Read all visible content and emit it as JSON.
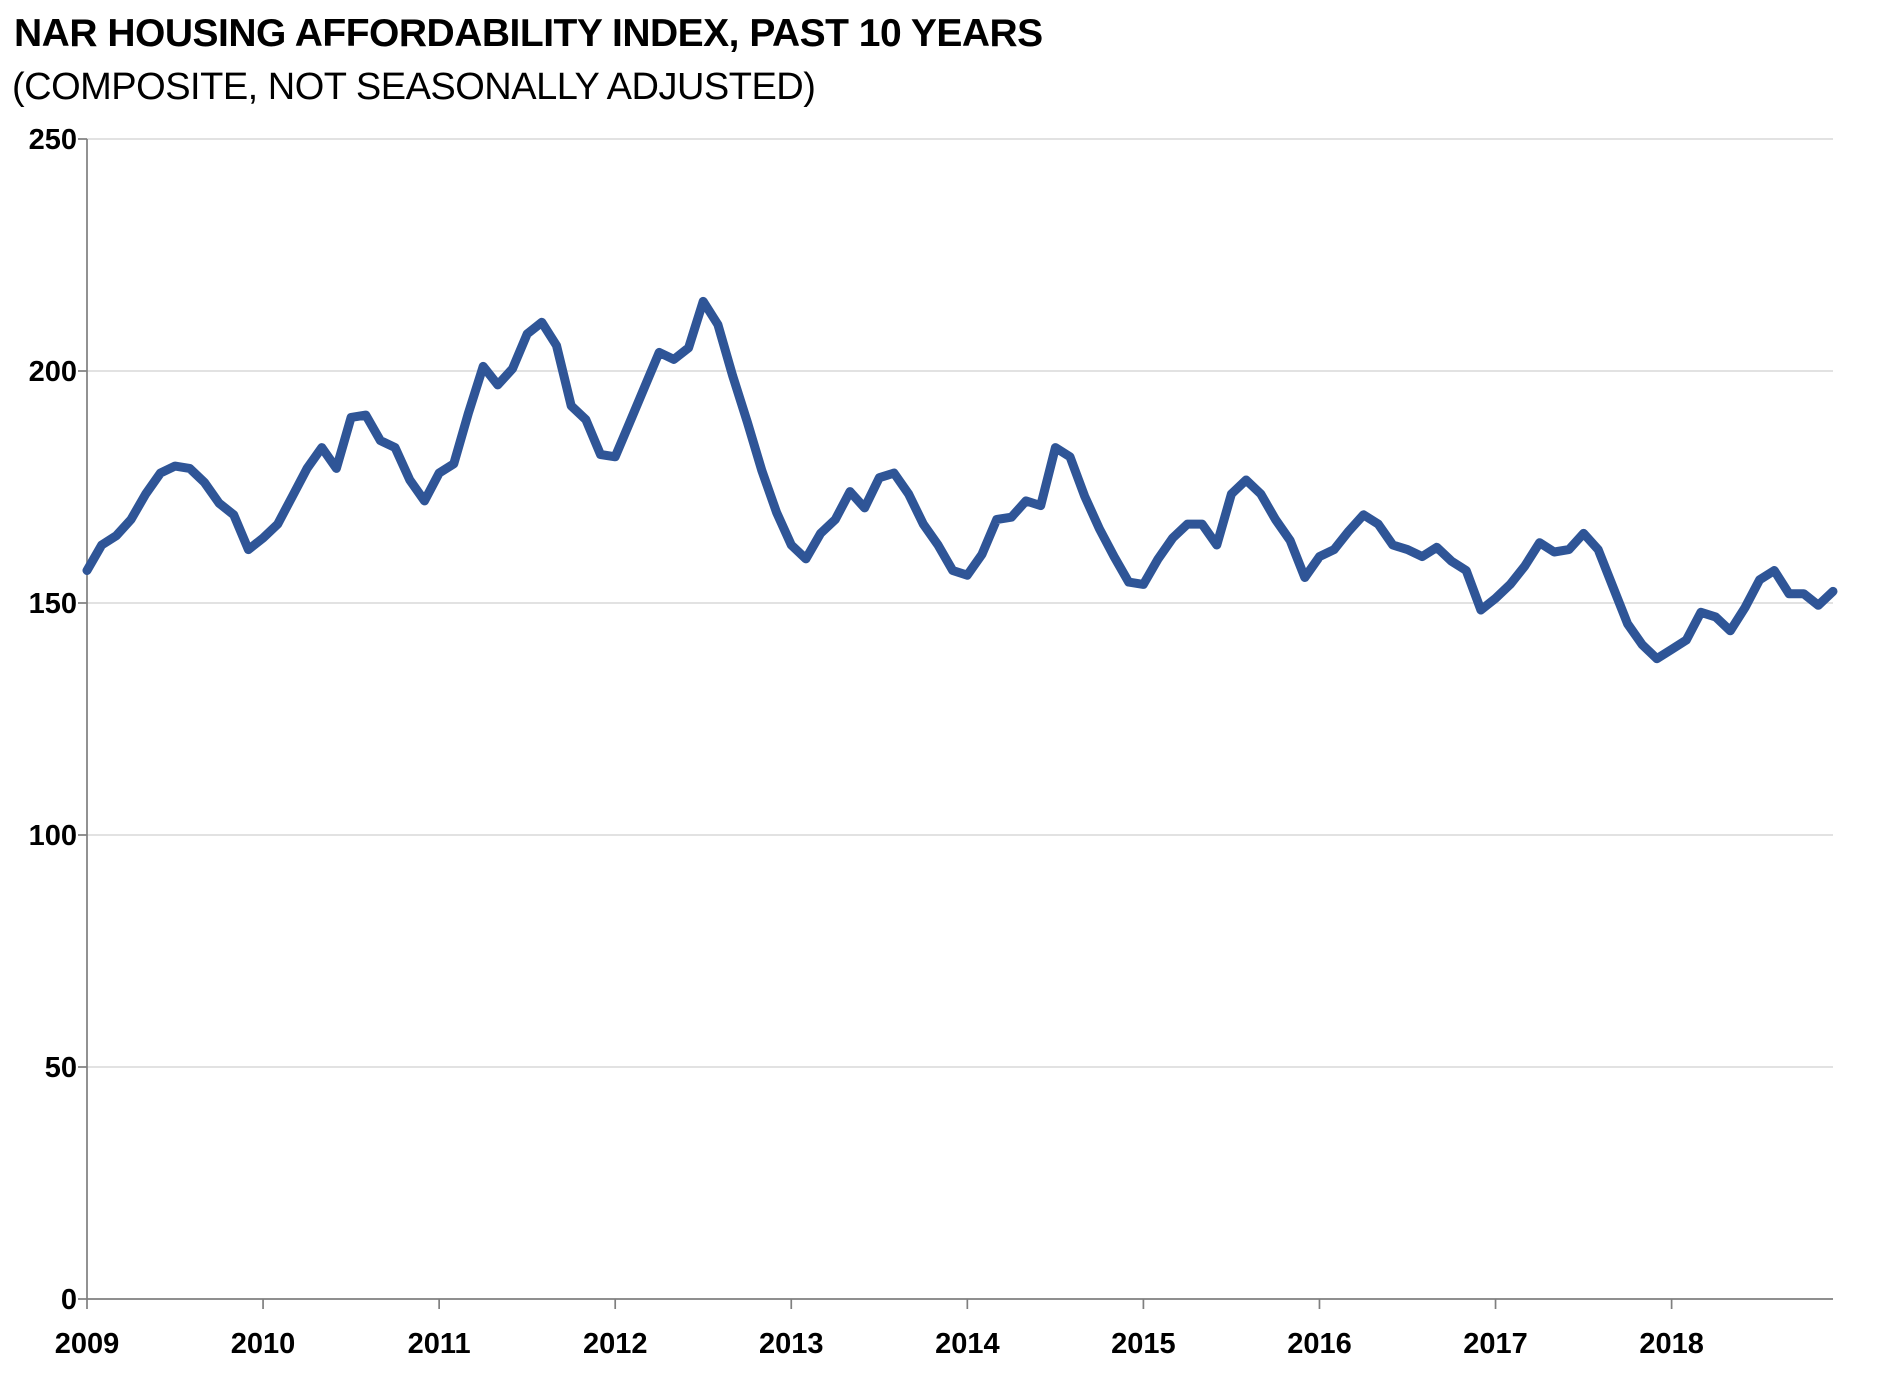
{
  "chart_data": {
    "type": "line",
    "title": "NAR HOUSING AFFORDABILITY INDEX, PAST 10 YEARS",
    "subtitle": "(COMPOSITE, NOT SEASONALLY ADJUSTED)",
    "x_start": "2009-01",
    "x_frequency": "monthly",
    "x_tick_labels": [
      "2009",
      "2010",
      "2011",
      "2012",
      "2013",
      "2014",
      "2015",
      "2016",
      "2017",
      "2018"
    ],
    "y_ticks": [
      0,
      50,
      100,
      150,
      200,
      250
    ],
    "ylim": [
      0,
      250
    ],
    "grid": "horizontal",
    "legend": "none",
    "values": [
      157,
      162.5,
      164.5,
      168,
      173.5,
      178,
      179.5,
      179,
      176,
      171.5,
      169,
      161.5,
      164,
      167,
      173,
      179,
      183.5,
      179,
      190,
      190.5,
      185,
      183.5,
      176.5,
      172,
      178,
      180,
      191,
      201,
      197,
      200.5,
      208,
      210.5,
      205.5,
      192.5,
      189.5,
      182,
      181.5,
      189,
      196.5,
      204,
      202.5,
      205,
      215,
      210,
      199,
      189,
      178.5,
      169.5,
      162.5,
      159.5,
      165,
      168,
      174,
      170.5,
      177,
      178,
      173.5,
      167,
      162.5,
      157,
      156,
      160.5,
      168,
      168.5,
      172,
      171,
      183.5,
      181.5,
      173,
      166,
      160,
      154.5,
      154,
      159.5,
      164,
      167,
      167,
      162.5,
      173.5,
      176.5,
      173.5,
      168,
      163.5,
      155.5,
      160,
      161.5,
      165.5,
      169,
      167,
      162.5,
      161.5,
      160,
      162,
      159,
      157,
      148.5,
      151,
      154,
      158,
      163,
      161,
      161.5,
      165,
      161.5,
      153.5,
      145.5,
      141,
      138,
      140,
      142,
      148,
      147,
      144,
      149,
      155,
      157,
      152,
      152,
      149.5,
      152.5
    ],
    "colors": {
      "line": "#2F5597",
      "gridline": "#D9D9D9",
      "axis": "#7F7F7F",
      "text": "#000000"
    }
  }
}
